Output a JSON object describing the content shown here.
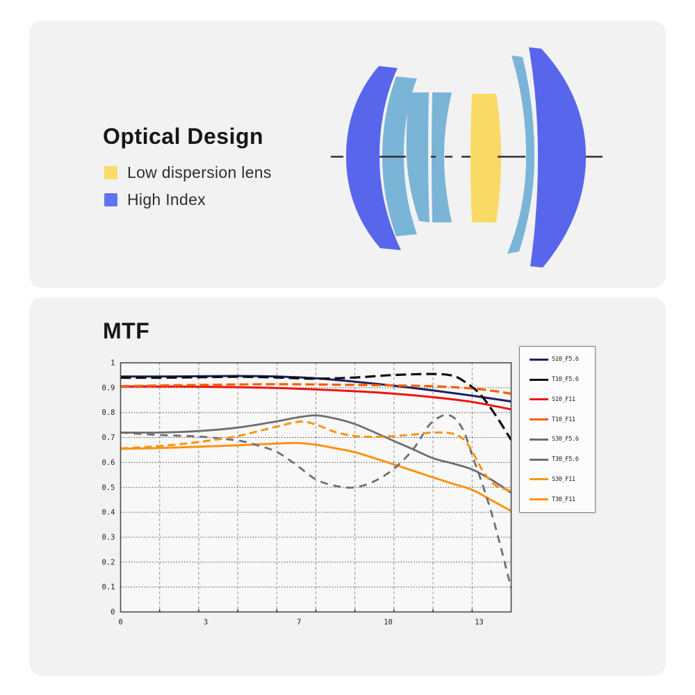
{
  "page": {
    "background": "#ffffff",
    "card_background": "#f2f2f2"
  },
  "optical": {
    "title": "Optical Design",
    "legend": [
      {
        "label": "Low dispersion lens",
        "color": "#f8dd68"
      },
      {
        "label": "High Index",
        "color": "#6372f1"
      }
    ],
    "lens_colors": {
      "low_dispersion": "#f9da64",
      "high_index": "#5766ea",
      "normal": "#7ab5d8",
      "optical_axis": "#2f2f2f"
    }
  },
  "chart_data": {
    "type": "line",
    "title": "MTF",
    "xlabel": "",
    "ylabel": "",
    "ylim": [
      0,
      1
    ],
    "grid": {
      "h_divisions": 10,
      "v_divisions": 10,
      "grid_on": true
    },
    "legend_position": "right",
    "yticks": [
      "1",
      "0.9",
      "0.8",
      "0.7",
      "0.6",
      "0.5",
      "0.4",
      "0.3",
      "0.2",
      "0.1",
      "0"
    ],
    "xticks": [
      {
        "label": "0",
        "f": 0.0
      },
      {
        "label": "3",
        "f": 0.218
      },
      {
        "label": "7",
        "f": 0.457
      },
      {
        "label": "10",
        "f": 0.685
      },
      {
        "label": "13",
        "f": 0.918
      }
    ],
    "x_units": "fraction of axis (image height positions, non-linear ticks)",
    "series": [
      {
        "name": "S10_F5.6",
        "color": "#1c2060",
        "dash": null,
        "width": 3.0,
        "points": [
          [
            0,
            0.945
          ],
          [
            0.1,
            0.945
          ],
          [
            0.2,
            0.946
          ],
          [
            0.3,
            0.947
          ],
          [
            0.4,
            0.945
          ],
          [
            0.5,
            0.938
          ],
          [
            0.6,
            0.924
          ],
          [
            0.7,
            0.908
          ],
          [
            0.8,
            0.889
          ],
          [
            0.9,
            0.868
          ],
          [
            1,
            0.845
          ]
        ]
      },
      {
        "name": "T10_F5.6",
        "color": "#0b0b0b",
        "dash": "15 7",
        "width": 3.2,
        "points": [
          [
            0,
            0.94
          ],
          [
            0.1,
            0.94
          ],
          [
            0.2,
            0.942
          ],
          [
            0.3,
            0.944
          ],
          [
            0.4,
            0.941
          ],
          [
            0.5,
            0.936
          ],
          [
            0.6,
            0.941
          ],
          [
            0.7,
            0.951
          ],
          [
            0.8,
            0.955
          ],
          [
            0.85,
            0.948
          ],
          [
            0.88,
            0.925
          ],
          [
            0.92,
            0.875
          ],
          [
            0.96,
            0.79
          ],
          [
            1,
            0.69
          ]
        ]
      },
      {
        "name": "S10_F11",
        "color": "#ef1212",
        "dash": null,
        "width": 3.0,
        "points": [
          [
            0,
            0.905
          ],
          [
            0.1,
            0.905
          ],
          [
            0.2,
            0.904
          ],
          [
            0.3,
            0.902
          ],
          [
            0.4,
            0.899
          ],
          [
            0.5,
            0.893
          ],
          [
            0.6,
            0.886
          ],
          [
            0.7,
            0.876
          ],
          [
            0.8,
            0.862
          ],
          [
            0.9,
            0.843
          ],
          [
            1,
            0.813
          ]
        ]
      },
      {
        "name": "T10_F11",
        "color": "#ff5d00",
        "dash": "13 6",
        "width": 3.2,
        "points": [
          [
            0,
            0.906
          ],
          [
            0.1,
            0.909
          ],
          [
            0.2,
            0.911
          ],
          [
            0.3,
            0.913
          ],
          [
            0.4,
            0.914
          ],
          [
            0.5,
            0.913
          ],
          [
            0.6,
            0.911
          ],
          [
            0.7,
            0.909
          ],
          [
            0.8,
            0.906
          ],
          [
            0.9,
            0.897
          ],
          [
            0.95,
            0.888
          ],
          [
            1,
            0.876
          ]
        ]
      },
      {
        "name": "S30_F5.6",
        "color": "#6e6e6e",
        "dash": null,
        "width": 2.8,
        "points": [
          [
            0,
            0.72
          ],
          [
            0.1,
            0.72
          ],
          [
            0.2,
            0.726
          ],
          [
            0.3,
            0.74
          ],
          [
            0.4,
            0.765
          ],
          [
            0.45,
            0.78
          ],
          [
            0.5,
            0.789
          ],
          [
            0.55,
            0.776
          ],
          [
            0.6,
            0.754
          ],
          [
            0.65,
            0.721
          ],
          [
            0.7,
            0.686
          ],
          [
            0.75,
            0.652
          ],
          [
            0.8,
            0.617
          ],
          [
            0.85,
            0.596
          ],
          [
            0.9,
            0.572
          ],
          [
            0.95,
            0.53
          ],
          [
            1,
            0.478
          ]
        ]
      },
      {
        "name": "T30_F5.6",
        "color": "#6e6e6e",
        "dash": "11 8",
        "width": 2.8,
        "points": [
          [
            0,
            0.72
          ],
          [
            0.1,
            0.71
          ],
          [
            0.2,
            0.704
          ],
          [
            0.3,
            0.688
          ],
          [
            0.35,
            0.669
          ],
          [
            0.4,
            0.642
          ],
          [
            0.45,
            0.59
          ],
          [
            0.5,
            0.532
          ],
          [
            0.55,
            0.506
          ],
          [
            0.6,
            0.5
          ],
          [
            0.65,
            0.525
          ],
          [
            0.7,
            0.575
          ],
          [
            0.75,
            0.655
          ],
          [
            0.79,
            0.75
          ],
          [
            0.82,
            0.785
          ],
          [
            0.84,
            0.79
          ],
          [
            0.86,
            0.77
          ],
          [
            0.88,
            0.72
          ],
          [
            0.9,
            0.63
          ],
          [
            0.93,
            0.495
          ],
          [
            0.96,
            0.34
          ],
          [
            1,
            0.095
          ]
        ]
      },
      {
        "name": "S30_F11",
        "color": "#ff9212",
        "dash": null,
        "width": 3.0,
        "points": [
          [
            0,
            0.655
          ],
          [
            0.1,
            0.658
          ],
          [
            0.2,
            0.663
          ],
          [
            0.3,
            0.669
          ],
          [
            0.4,
            0.676
          ],
          [
            0.45,
            0.678
          ],
          [
            0.5,
            0.671
          ],
          [
            0.55,
            0.657
          ],
          [
            0.6,
            0.641
          ],
          [
            0.65,
            0.617
          ],
          [
            0.7,
            0.592
          ],
          [
            0.75,
            0.566
          ],
          [
            0.8,
            0.54
          ],
          [
            0.85,
            0.515
          ],
          [
            0.9,
            0.49
          ],
          [
            0.95,
            0.448
          ],
          [
            1,
            0.405
          ]
        ]
      },
      {
        "name": "T30_F11",
        "color": "#ff9212",
        "dash": "11 6",
        "width": 3.0,
        "points": [
          [
            0,
            0.656
          ],
          [
            0.1,
            0.666
          ],
          [
            0.2,
            0.682
          ],
          [
            0.3,
            0.706
          ],
          [
            0.4,
            0.744
          ],
          [
            0.46,
            0.764
          ],
          [
            0.5,
            0.752
          ],
          [
            0.55,
            0.722
          ],
          [
            0.6,
            0.706
          ],
          [
            0.65,
            0.703
          ],
          [
            0.7,
            0.706
          ],
          [
            0.75,
            0.712
          ],
          [
            0.8,
            0.72
          ],
          [
            0.85,
            0.716
          ],
          [
            0.88,
            0.69
          ],
          [
            0.9,
            0.645
          ],
          [
            0.93,
            0.56
          ],
          [
            0.96,
            0.508
          ],
          [
            1,
            0.486
          ]
        ]
      }
    ],
    "style": {
      "plot_bg": "#f8f8f8",
      "frame": "#4a4a4a",
      "h_grid": "#4f4f4f",
      "v_grid": "#909090",
      "tick_text": "#222222"
    }
  }
}
